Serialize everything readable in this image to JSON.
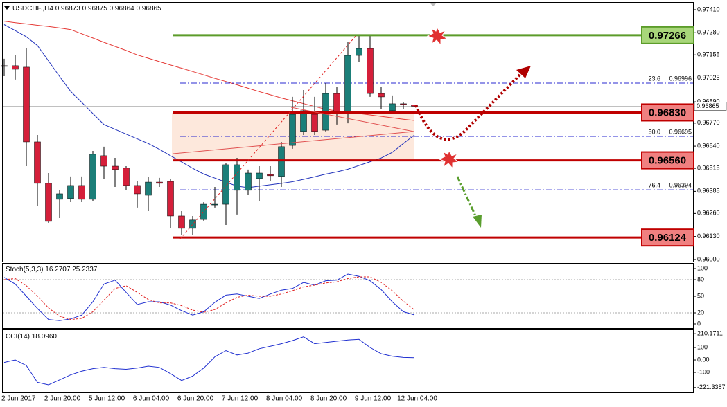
{
  "chart_data": [
    {
      "type": "candlestick",
      "symbol": "USDCHF.,H4",
      "open": [
        0.97094,
        0.97094,
        0.97086,
        0.96664,
        0.9643,
        0.9634,
        0.96344,
        0.96418,
        0.9634,
        0.96586,
        0.96527,
        0.96516,
        0.96418,
        0.96363,
        0.96437,
        0.96441,
        0.96246,
        0.96176,
        0.96226,
        0.96312,
        0.96312,
        0.96391,
        0.96391,
        0.96457,
        0.9648,
        0.96469,
        0.96644,
        0.96723,
        0.9682,
        0.9673,
        0.96937,
        0.96832,
        0.97152,
        0.97191,
        0.96937,
        0.9684,
        0.96879,
        0.96873
      ],
      "high": [
        0.97133,
        0.97152,
        0.97191,
        0.96703,
        0.96488,
        0.96391,
        0.96469,
        0.96469,
        0.96613,
        0.96637,
        0.96574,
        0.96527,
        0.96441,
        0.96465,
        0.96461,
        0.96457,
        0.96273,
        0.96246,
        0.96324,
        0.9641,
        0.96543,
        0.96574,
        0.96508,
        0.96527,
        0.96527,
        0.96664,
        0.96918,
        0.96957,
        0.96918,
        0.96996,
        0.96976,
        0.9723,
        0.97269,
        0.97262,
        0.96976,
        0.96926,
        0.96887,
        0.96875
      ],
      "low": [
        0.97035,
        0.97016,
        0.96527,
        0.96301,
        0.96207,
        0.96234,
        0.96324,
        0.96324,
        0.96332,
        0.96457,
        0.9641,
        0.96391,
        0.96293,
        0.96273,
        0.9641,
        0.96176,
        0.96137,
        0.96137,
        0.96215,
        0.96293,
        0.96195,
        0.96254,
        0.96363,
        0.96332,
        0.96441,
        0.9641,
        0.96625,
        0.96703,
        0.96703,
        0.96723,
        0.96762,
        0.96769,
        0.97113,
        0.96918,
        0.96848,
        0.96832,
        0.96848,
        0.96864
      ],
      "close": [
        0.9709,
        0.97074,
        0.96664,
        0.9643,
        0.96215,
        0.96371,
        0.96418,
        0.9634,
        0.96594,
        0.96527,
        0.96508,
        0.96418,
        0.96371,
        0.96437,
        0.9643,
        0.96246,
        0.96176,
        0.96223,
        0.96312,
        0.96312,
        0.96535,
        0.96535,
        0.96488,
        0.96488,
        0.96473,
        0.96637,
        0.9682,
        0.9684,
        0.96723,
        0.96937,
        0.96832,
        0.97152,
        0.97191,
        0.96937,
        0.96918,
        0.96879,
        0.96875,
        0.96865
      ],
      "up_color": "#1b7f79",
      "down_color": "#d51f3a",
      "moving_averages": [
        {
          "color": "#e53935",
          "values": [
            0.97345,
            0.97337,
            0.9733,
            0.97322,
            0.97315,
            0.97307,
            0.97298,
            0.97274,
            0.9725,
            0.97226,
            0.97203,
            0.9718,
            0.97155,
            0.97136,
            0.97117,
            0.97098,
            0.9708,
            0.97061,
            0.97042,
            0.97023,
            0.97005,
            0.96986,
            0.96967,
            0.96948,
            0.9693,
            0.96912,
            0.96896,
            0.9688,
            0.96864,
            0.96848,
            0.96839,
            0.96832,
            0.96824,
            0.96816,
            0.96808,
            0.968,
            0.96792,
            0.96785
          ]
        },
        {
          "color": "#2233bb",
          "values": [
            0.97326,
            0.97292,
            0.97257,
            0.97208,
            0.97121,
            0.97033,
            0.96949,
            0.96887,
            0.96824,
            0.96762,
            0.96735,
            0.96708,
            0.96681,
            0.96655,
            0.96622,
            0.96586,
            0.96551,
            0.96515,
            0.96482,
            0.9646,
            0.96437,
            0.96414,
            0.96406,
            0.96414,
            0.96422,
            0.9643,
            0.96439,
            0.96453,
            0.96467,
            0.96482,
            0.96495,
            0.9651,
            0.96531,
            0.96552,
            0.96573,
            0.96605,
            0.96655,
            0.96703
          ]
        }
      ],
      "ylim": [
        0.95988,
        0.97449
      ],
      "yticks": [
        {
          "value": 0.9741,
          "label": "0.97410"
        },
        {
          "value": 0.9728,
          "label": "0.97280"
        },
        0.97155,
        0.97025,
        {
          "value": 0.9689,
          "label": "0.96890"
        },
        {
          "value": 0.9677,
          "label": "0.96770"
        },
        {
          "value": 0.9664,
          "label": "0.96640"
        },
        0.96515,
        0.96385,
        {
          "value": 0.9626,
          "label": "0.96260"
        },
        {
          "value": 0.9613,
          "label": "0.96130"
        },
        {
          "value": 0.96,
          "label": "0.96000"
        }
      ],
      "levels": [
        {
          "value": 0.97266,
          "label": "0.97266",
          "color": "#5c9c2a",
          "fill": "#a8d67a",
          "text_color": "#1f3d0c"
        },
        {
          "value": 0.9683,
          "label": "0.96830",
          "color": "#c00000",
          "fill": "#f08080",
          "text_color": "#7a0000"
        },
        {
          "value": 0.9656,
          "label": "0.96560",
          "color": "#c00000",
          "fill": "#f08080",
          "text_color": "#7a0000"
        },
        {
          "value": 0.96124,
          "label": "0.96124",
          "color": "#c00000",
          "fill": "#f08080",
          "text_color": "#7a0000"
        }
      ],
      "fib_levels": [
        {
          "ratio": 23.6,
          "value": 0.96996
        },
        {
          "ratio": {
            "value": 50,
            "label": "50.0"
          },
          "value": 0.96695
        },
        {
          "ratio": 76.4,
          "value": 0.96394
        }
      ]
    },
    {
      "type": "line",
      "label": "Stoch(5,3,3)",
      "series": [
        {
          "color": "#1f2fd0",
          "values": [
            84,
            72,
            50,
            28,
            8,
            6,
            9,
            16,
            40,
            72,
            79,
            57,
            35,
            40,
            40,
            34,
            24,
            16,
            22,
            39,
            52,
            54,
            50,
            46,
            54,
            61,
            64,
            75,
            70,
            78,
            79,
            90,
            86,
            78,
            62,
            40,
            22,
            16.2707
          ]
        },
        {
          "color": "#e02020",
          "dash": true,
          "values": [
            80,
            82,
            69,
            50,
            29,
            14,
            8,
            10,
            22,
            43,
            64,
            69,
            57,
            44,
            38,
            38,
            33,
            25,
            21,
            26,
            38,
            48,
            52,
            50,
            50,
            54,
            60,
            67,
            70,
            74,
            76,
            82,
            85,
            85,
            75,
            60,
            41,
            25.2337
          ]
        }
      ],
      "ylim": [
        -7.5,
        108.75
      ],
      "yticks": [
        0,
        20,
        50,
        80,
        100
      ],
      "levels": [
        20,
        80
      ]
    },
    {
      "type": "line",
      "label": "CCI(14)",
      "series": [
        {
          "color": "#1f2fd0",
          "values": [
            -20,
            0,
            -45,
            -180,
            -200,
            -160,
            -120,
            -90,
            -70,
            -60,
            -70,
            -75,
            -65,
            -50,
            -60,
            -110,
            -165,
            -130,
            -65,
            25,
            75,
            40,
            55,
            90,
            110,
            130,
            155,
            185,
            130,
            140,
            150,
            160,
            165,
            100,
            50,
            30,
            20,
            18.096
          ],
          "value_labels": [
            null,
            null,
            null,
            null,
            null,
            null,
            null,
            null,
            null,
            null,
            null,
            null,
            null,
            null,
            null,
            null,
            null,
            null,
            null,
            null,
            null,
            null,
            null,
            null,
            null,
            null,
            null,
            null,
            null,
            null,
            null,
            null,
            null,
            null,
            null,
            null,
            null,
            "18.0960"
          ]
        }
      ],
      "ylim": [
        -261,
        239
      ],
      "yticks": [
        -221.3387,
        -100,
        {
          "value": 0,
          "label": "0.00"
        },
        100,
        210.1711
      ],
      "categories": [
        null,
        "2 Jun 2017",
        null,
        null,
        null,
        "2 Jun 20:00",
        null,
        null,
        null,
        "5 Jun 12:00",
        null,
        null,
        null,
        "6 Jun 04:00",
        null,
        null,
        null,
        "6 Jun 20:00",
        null,
        null,
        null,
        "7 Jun 12:00",
        null,
        null,
        null,
        "8 Jun 04:00",
        null,
        null,
        null,
        "8 Jun 20:00",
        null,
        null,
        null,
        "9 Jun 12:00",
        null,
        null,
        null,
        "12 Jun 04:00"
      ]
    }
  ]
}
